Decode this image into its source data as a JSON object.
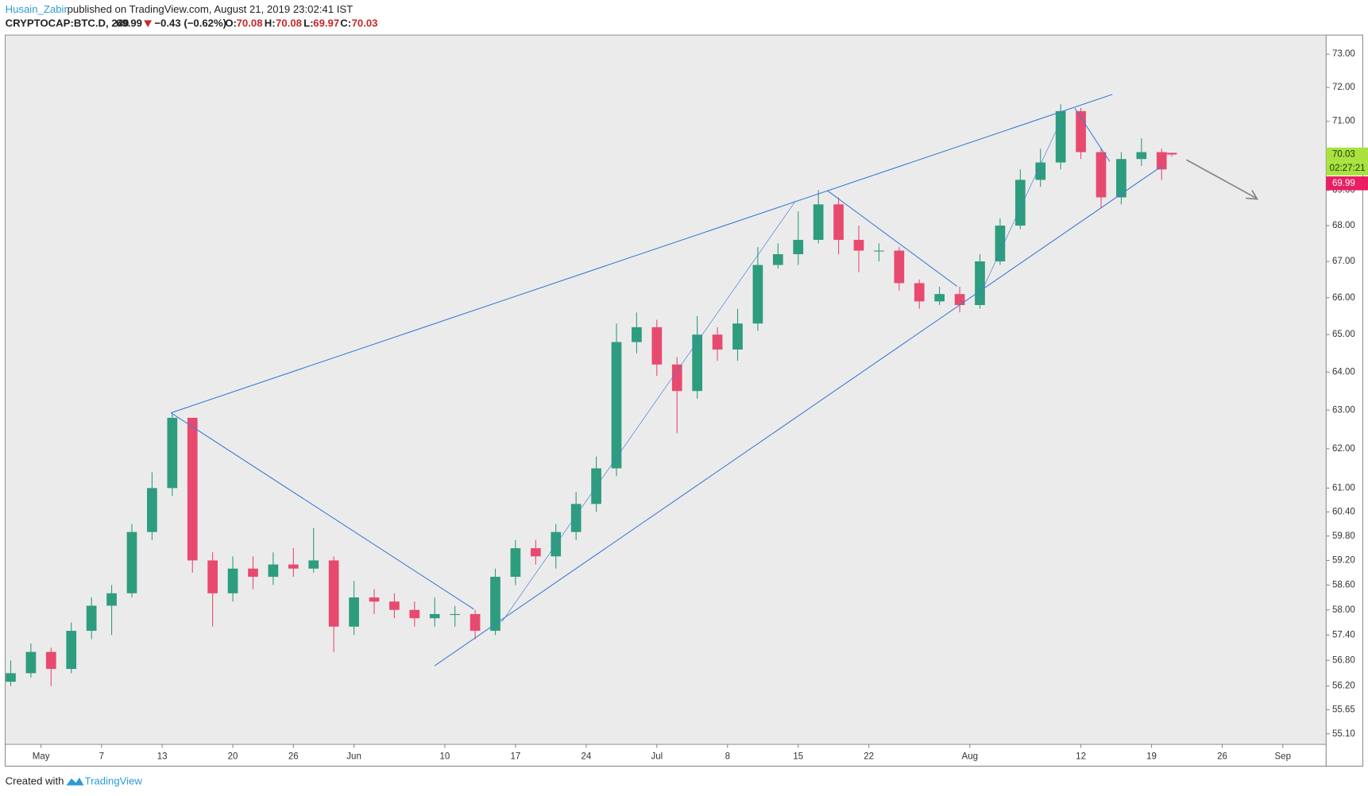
{
  "header": {
    "author": "Husain_Zabir",
    "published": "published on TradingView.com, August 21, 2019 23:02:41 IST",
    "symbol": "CRYPTOCAP:BTC.D, 240",
    "last": "69.99",
    "change": "−0.43 (−0.62%)",
    "ohlc": [
      {
        "label": "O:",
        "value": "70.08"
      },
      {
        "label": "H:",
        "value": "70.08"
      },
      {
        "label": "L:",
        "value": "69.97"
      },
      {
        "label": "C:",
        "value": "70.03"
      }
    ]
  },
  "chart_data": {
    "type": "candlestick",
    "log_scale": true,
    "grid": false,
    "up_color": "#2e9c7e",
    "down_color": "#e84a6f",
    "x": [
      "04-28",
      "04-30",
      "05-02",
      "05-04",
      "05-06",
      "05-08",
      "05-10",
      "05-12",
      "05-14",
      "05-16",
      "05-18",
      "05-20",
      "05-22",
      "05-24",
      "05-26",
      "05-28",
      "05-30",
      "06-01",
      "06-03",
      "06-05",
      "06-07",
      "06-09",
      "06-11",
      "06-13",
      "06-15",
      "06-17",
      "06-19",
      "06-21",
      "06-23",
      "06-25",
      "06-27",
      "06-29",
      "07-01",
      "07-03",
      "07-05",
      "07-07",
      "07-09",
      "07-11",
      "07-13",
      "07-15",
      "07-17",
      "07-19",
      "07-21",
      "07-23",
      "07-25",
      "07-27",
      "07-29",
      "07-31",
      "08-02",
      "08-04",
      "08-06",
      "08-08",
      "08-10",
      "08-12",
      "08-14",
      "08-16",
      "08-18",
      "08-20",
      "08-21"
    ],
    "open": [
      56.3,
      56.5,
      57.0,
      56.6,
      57.5,
      58.1,
      58.4,
      59.9,
      61.0,
      62.8,
      59.2,
      58.4,
      59.0,
      58.8,
      59.1,
      59.0,
      59.2,
      57.6,
      58.3,
      58.2,
      58.0,
      57.8,
      57.9,
      57.9,
      57.5,
      58.8,
      59.5,
      59.3,
      59.9,
      60.6,
      61.5,
      64.8,
      65.2,
      64.2,
      63.5,
      65.0,
      64.6,
      65.3,
      66.9,
      67.2,
      67.6,
      68.6,
      67.6,
      67.3,
      67.3,
      66.4,
      65.9,
      66.1,
      65.8,
      67.0,
      68.0,
      69.3,
      69.8,
      71.3,
      70.1,
      68.8,
      69.9,
      70.1,
      70.08
    ],
    "high": [
      56.8,
      57.2,
      57.1,
      57.7,
      58.3,
      58.6,
      60.1,
      61.4,
      62.9,
      62.8,
      59.4,
      59.3,
      59.3,
      59.4,
      59.5,
      60.0,
      59.3,
      58.7,
      58.5,
      58.4,
      58.2,
      58.3,
      58.1,
      58.0,
      59.0,
      59.7,
      59.7,
      60.1,
      60.9,
      61.8,
      65.3,
      65.6,
      65.4,
      64.4,
      65.5,
      65.2,
      65.7,
      67.4,
      67.5,
      68.4,
      69.0,
      68.8,
      68.0,
      67.5,
      67.4,
      66.5,
      66.3,
      66.3,
      67.2,
      68.2,
      69.6,
      70.2,
      71.5,
      71.4,
      70.2,
      70.1,
      70.5,
      70.2,
      70.08
    ],
    "low": [
      56.2,
      56.4,
      56.2,
      56.5,
      57.3,
      57.4,
      58.3,
      59.7,
      60.8,
      58.9,
      57.6,
      58.2,
      58.5,
      58.6,
      58.8,
      58.9,
      57.0,
      57.4,
      57.9,
      57.8,
      57.6,
      57.6,
      57.6,
      57.3,
      57.4,
      58.6,
      59.1,
      59.0,
      59.7,
      60.4,
      61.3,
      64.5,
      63.9,
      62.4,
      63.3,
      64.3,
      64.3,
      65.1,
      66.8,
      66.9,
      67.5,
      67.2,
      66.7,
      67.0,
      66.2,
      65.7,
      65.8,
      65.6,
      65.7,
      66.9,
      67.9,
      69.1,
      69.6,
      69.9,
      68.5,
      68.6,
      69.7,
      69.3,
      69.97
    ],
    "close": [
      56.5,
      57.0,
      56.6,
      57.5,
      58.1,
      58.4,
      59.9,
      61.0,
      62.8,
      59.2,
      58.4,
      59.0,
      58.8,
      59.1,
      59.0,
      59.2,
      57.6,
      58.3,
      58.2,
      58.0,
      57.8,
      57.9,
      57.9,
      57.5,
      58.8,
      59.5,
      59.3,
      59.9,
      60.6,
      61.5,
      64.8,
      65.2,
      64.2,
      63.5,
      65.0,
      64.6,
      65.3,
      66.9,
      67.2,
      67.6,
      68.6,
      67.6,
      67.3,
      67.3,
      66.4,
      65.9,
      66.1,
      65.8,
      67.0,
      68.0,
      69.3,
      69.8,
      71.3,
      70.1,
      68.8,
      69.9,
      70.1,
      69.6,
      70.03
    ],
    "xlim": [
      "04-27 12:00",
      "09-05 07:00"
    ],
    "xticks": [
      {
        "value": "05-01",
        "label": "May"
      },
      {
        "value": "05-07",
        "label": "7"
      },
      {
        "value": "05-13",
        "label": "13"
      },
      {
        "value": "05-20",
        "label": "20"
      },
      {
        "value": "05-26",
        "label": "26"
      },
      {
        "value": "06-01",
        "label": "Jun"
      },
      {
        "value": "06-10",
        "label": "10"
      },
      {
        "value": "06-17",
        "label": "17"
      },
      {
        "value": "06-24",
        "label": "24"
      },
      {
        "value": "07-01",
        "label": "Jul"
      },
      {
        "value": "07-08",
        "label": "8"
      },
      {
        "value": "07-15",
        "label": "15"
      },
      {
        "value": "07-22",
        "label": "22"
      },
      {
        "value": "08-01",
        "label": "Aug"
      },
      {
        "value": "08-12",
        "label": "12"
      },
      {
        "value": "08-19",
        "label": "19"
      },
      {
        "value": "08-26",
        "label": "26"
      },
      {
        "value": "09-01",
        "label": "Sep"
      }
    ],
    "ylim": [
      54.86,
      73.58
    ],
    "yticks": [
      {
        "value": 73,
        "label": "73.00"
      },
      {
        "value": 72,
        "label": "72.00"
      },
      {
        "value": 71,
        "label": "71.00"
      },
      {
        "value": 69,
        "label": "69.00"
      },
      {
        "value": 68,
        "label": "68.00"
      },
      {
        "value": 67,
        "label": "67.00"
      },
      {
        "value": 66,
        "label": "66.00"
      },
      {
        "value": 65,
        "label": "65.00"
      },
      {
        "value": 64,
        "label": "64.00"
      },
      {
        "value": 63,
        "label": "63.00"
      },
      {
        "value": 62,
        "label": "62.00"
      },
      {
        "value": 61,
        "label": "61.00"
      },
      {
        "value": 60.4,
        "label": "60.40"
      },
      {
        "value": 59.8,
        "label": "59.80"
      },
      {
        "value": 59.2,
        "label": "59.20"
      },
      {
        "value": 58.6,
        "label": "58.60"
      },
      {
        "value": 58,
        "label": "58.00"
      },
      {
        "value": 57.4,
        "label": "57.40"
      },
      {
        "value": 56.8,
        "label": "56.80"
      },
      {
        "value": 56.2,
        "label": "56.20"
      },
      {
        "value": 55.65,
        "label": "55.65"
      },
      {
        "value": 55.1,
        "label": "55.10"
      }
    ],
    "price_badges": [
      {
        "value": 70.03,
        "label": "70.03",
        "color": "#a9e23f",
        "text_color": "#1b3a10",
        "countdown": "02:27:21"
      },
      {
        "value": 69.99,
        "label": "69.99",
        "color": "#e91e63",
        "text_color": "#ffffff"
      }
    ]
  },
  "footer": {
    "prefix": "Created with",
    "brand": "TradingView"
  }
}
